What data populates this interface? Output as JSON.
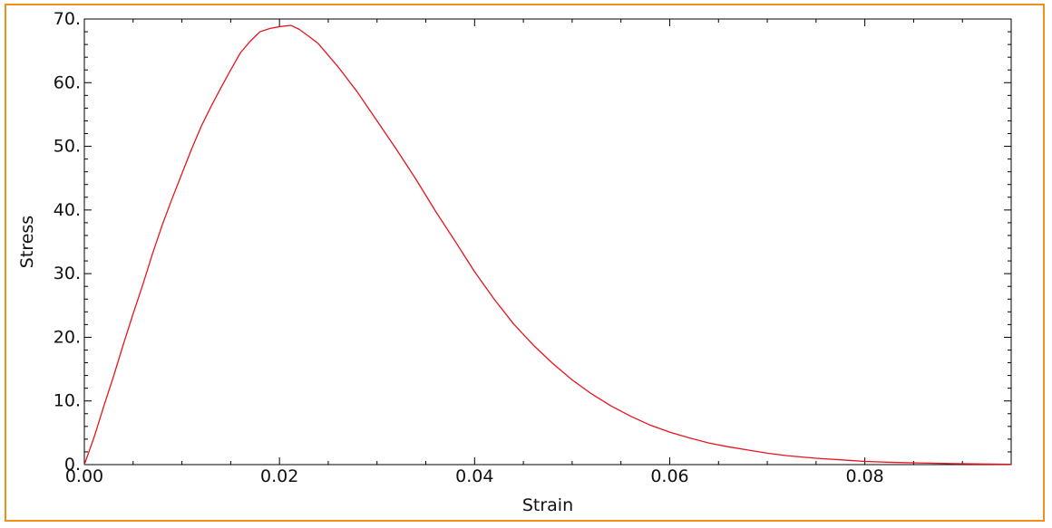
{
  "chart_data": {
    "type": "line",
    "title": "",
    "xlabel": "Strain",
    "ylabel": "Stress",
    "xlim": [
      0.0,
      0.095
    ],
    "ylim": [
      0.0,
      70.0
    ],
    "x_ticks": [
      0.0,
      0.02,
      0.04,
      0.06,
      0.08
    ],
    "x_tick_labels": [
      "0.00",
      "0.02",
      "0.04",
      "0.06",
      "0.08"
    ],
    "y_ticks": [
      0,
      10,
      20,
      30,
      40,
      50,
      60,
      70
    ],
    "y_tick_labels": [
      "0.",
      "10.",
      "20.",
      "30.",
      "40.",
      "50.",
      "60.",
      "70."
    ],
    "grid": false,
    "series": [
      {
        "color": "#e8141c",
        "x": [
          0.0,
          0.001,
          0.002,
          0.003,
          0.004,
          0.005,
          0.006,
          0.007,
          0.008,
          0.009,
          0.01,
          0.011,
          0.012,
          0.013,
          0.014,
          0.015,
          0.016,
          0.017,
          0.018,
          0.019,
          0.02,
          0.0212,
          0.022,
          0.023,
          0.024,
          0.025,
          0.026,
          0.027,
          0.028,
          0.03,
          0.032,
          0.034,
          0.036,
          0.038,
          0.04,
          0.042,
          0.044,
          0.046,
          0.048,
          0.05,
          0.052,
          0.054,
          0.056,
          0.058,
          0.06,
          0.062,
          0.064,
          0.066,
          0.068,
          0.07,
          0.072,
          0.075,
          0.078,
          0.08,
          0.083,
          0.086,
          0.089,
          0.092,
          0.095
        ],
        "y": [
          0.0,
          4.3,
          9.2,
          13.9,
          18.9,
          23.7,
          28.3,
          33.2,
          37.7,
          41.8,
          45.7,
          49.6,
          53.2,
          56.3,
          59.2,
          62.0,
          64.7,
          66.5,
          68.0,
          68.5,
          68.8,
          69.0,
          68.4,
          67.3,
          66.1,
          64.3,
          62.5,
          60.5,
          58.5,
          54.0,
          49.5,
          44.8,
          39.8,
          35.1,
          30.3,
          26.0,
          22.1,
          18.8,
          15.9,
          13.3,
          11.1,
          9.2,
          7.6,
          6.2,
          5.1,
          4.2,
          3.4,
          2.8,
          2.3,
          1.8,
          1.4,
          1.0,
          0.7,
          0.5,
          0.35,
          0.25,
          0.15,
          0.1,
          0.05
        ]
      }
    ]
  }
}
